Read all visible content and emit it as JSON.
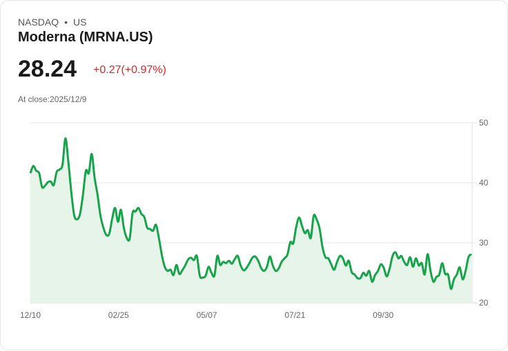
{
  "header": {
    "exchange": "NASDAQ",
    "separator": "•",
    "region": "US",
    "title": "Moderna (MRNA.US)",
    "price": "28.24",
    "change": "+0.27(+0.97%)",
    "close_label": "At close:2025/12/9"
  },
  "colors": {
    "line": "#16a34a",
    "fill": "#e6f4ea",
    "change": "#dc2626"
  },
  "chart_data": {
    "type": "area",
    "title": "Moderna (MRNA.US)",
    "ylim": [
      20,
      50
    ],
    "yticks": [
      "50",
      "40",
      "30",
      "20"
    ],
    "ytick_values": [
      50,
      40,
      30,
      20
    ],
    "xticks": [
      "12/10",
      "02/25",
      "05/07",
      "07/21",
      "09/30"
    ],
    "xtick_positions": [
      0,
      0.2,
      0.4,
      0.6,
      0.8
    ],
    "grid": true,
    "values": [
      41.6,
      42.8,
      42,
      41.6,
      39.3,
      39.5,
      40.1,
      40.2,
      39.6,
      41.8,
      42.2,
      43,
      47.4,
      43.5,
      38.5,
      34.6,
      33.9,
      34.8,
      38,
      42,
      41.6,
      44.8,
      40.8,
      38,
      34.5,
      32.5,
      31.3,
      31.5,
      34,
      35.8,
      33.5,
      35.5,
      32.5,
      30.8,
      30.7,
      35,
      35.2,
      35.8,
      34.8,
      34.3,
      32.5,
      32.3,
      32,
      33,
      30.8,
      28,
      26,
      25.3,
      25.5,
      24.6,
      26.3,
      24.8,
      25.4,
      26.2,
      27.2,
      27.5,
      27.1,
      27.8,
      24.5,
      24.2,
      24.5,
      26,
      25,
      24.5,
      27.8,
      26.3,
      26.8,
      26.6,
      27,
      26.5,
      27.3,
      27.8,
      26.2,
      25.4,
      25.8,
      26.6,
      27.5,
      27.7,
      27,
      25.8,
      25.3,
      26,
      27.7,
      26.2,
      25.3,
      25.7,
      26.8,
      27.4,
      28,
      30.1,
      29.9,
      32.6,
      34.2,
      32.8,
      31.6,
      32.1,
      30.8,
      34.5,
      33.9,
      32.4,
      29.3,
      27.6,
      27.4,
      26.4,
      25.5,
      26.8,
      27.8,
      27.4,
      26.2,
      27,
      25.1,
      24.7,
      24.1,
      24.1,
      25,
      24.5,
      25.3,
      23.5,
      24.6,
      25.3,
      26.4,
      25.8,
      24.4,
      25.7,
      27.8,
      28.4,
      27.4,
      27.8,
      26.8,
      26.3,
      27.6,
      26,
      27.4,
      26.2,
      26.6,
      24.7,
      28.1,
      25.3,
      23.5,
      24.3,
      24.7,
      26.6,
      24.8,
      24.7,
      22.3,
      23.9,
      24.7,
      25.9,
      23.9,
      25.3,
      27.6,
      28.1
    ]
  }
}
